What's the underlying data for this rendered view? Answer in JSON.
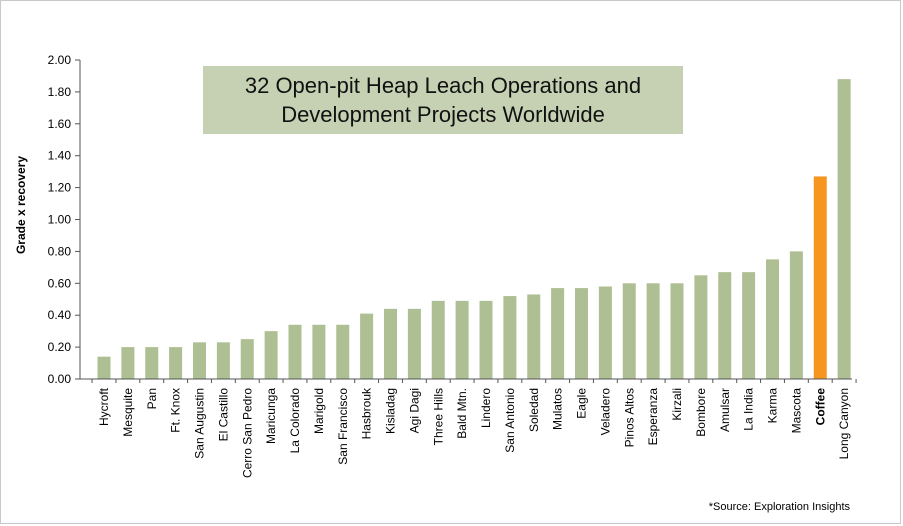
{
  "chart_data": {
    "type": "bar",
    "title": "32 Open-pit Heap Leach Operations and Development Projects Worldwide",
    "title_lines": [
      "32 Open-pit Heap Leach Operations and",
      "Development Projects Worldwide"
    ],
    "xlabel": "",
    "ylabel": "Grade x recovery",
    "ylim": [
      0,
      2.0
    ],
    "yticks": [
      "0.00",
      "0.20",
      "0.40",
      "0.60",
      "0.80",
      "1.00",
      "1.20",
      "1.40",
      "1.60",
      "1.80",
      "2.00"
    ],
    "grid": false,
    "categories": [
      "Hycroft",
      "Mesquite",
      "Pan",
      "Ft. Knox",
      "San Augustin",
      "El Castillo",
      "Cerro San Pedro",
      "Maricunga",
      "La Colorado",
      "Marigold",
      "San Francisco",
      "Hasbrouk",
      "Kisladag",
      "Agi Dagi",
      "Three Hills",
      "Bald Mtn.",
      "Lindero",
      "San Antonio",
      "Soledad",
      "Mulatos",
      "Eagle",
      "Veladero",
      "Pinos Altos",
      "Esperanza",
      "Kirzali",
      "Bombore",
      "Amulsar",
      "La India",
      "Karma",
      "Mascota",
      "Coffee",
      "Long Canyon"
    ],
    "values": [
      0.14,
      0.2,
      0.2,
      0.2,
      0.23,
      0.23,
      0.25,
      0.3,
      0.34,
      0.34,
      0.34,
      0.41,
      0.44,
      0.44,
      0.49,
      0.49,
      0.49,
      0.52,
      0.53,
      0.57,
      0.57,
      0.58,
      0.6,
      0.6,
      0.6,
      0.65,
      0.67,
      0.67,
      0.75,
      0.8,
      1.27,
      1.88
    ],
    "highlight": "Coffee",
    "colors": {
      "bar": "#adbf93",
      "highlight": "#f7961e",
      "axis": "#555555"
    }
  },
  "source_note": "*Source: Exploration Insights"
}
